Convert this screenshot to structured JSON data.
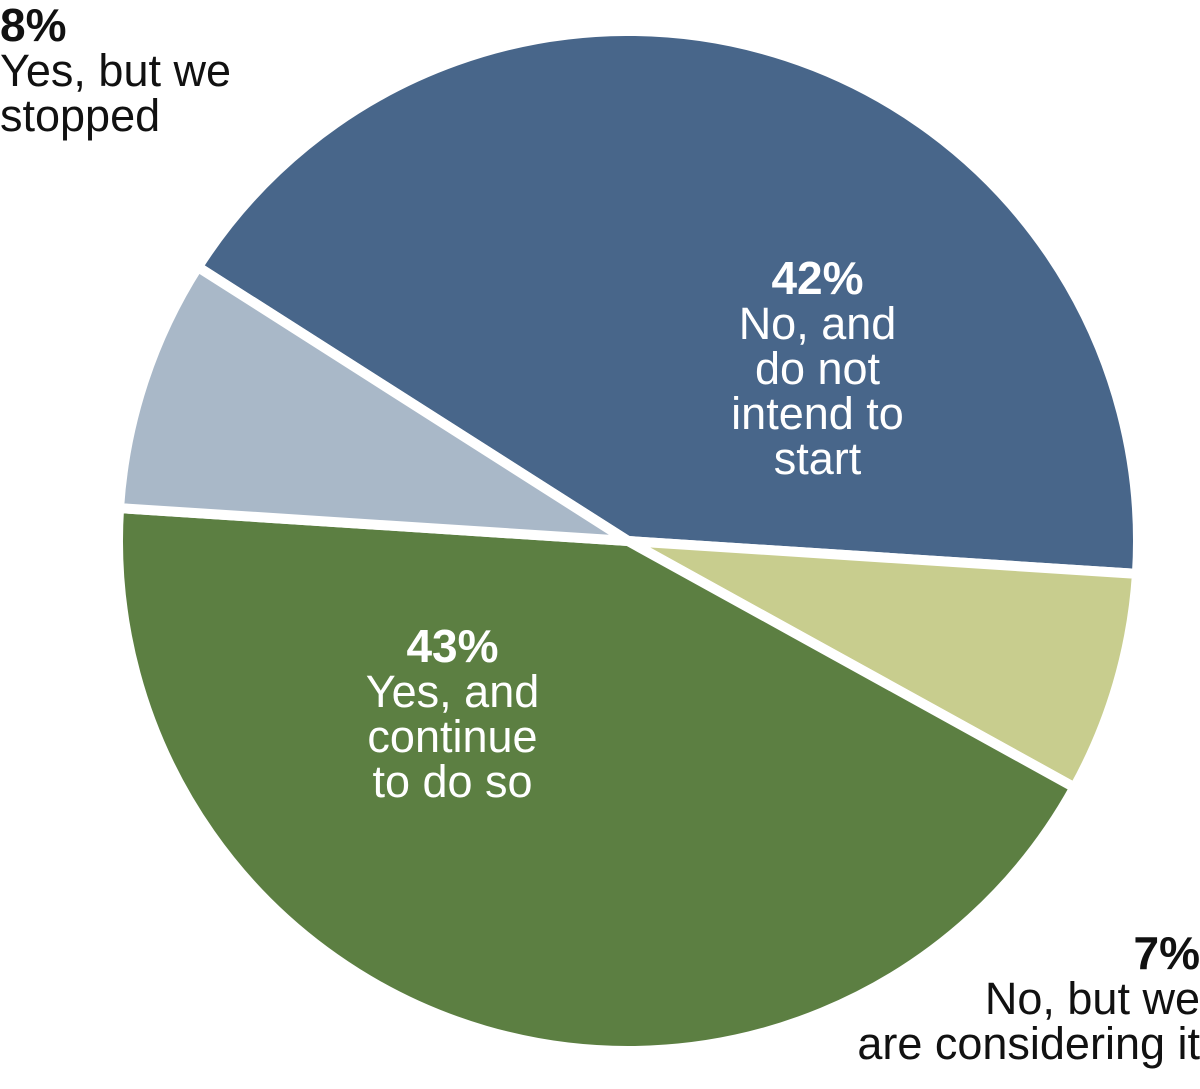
{
  "chart_data": {
    "type": "pie",
    "slices": [
      {
        "label_lines": [
          "No, and",
          "do not",
          "intend to",
          "start"
        ],
        "value": 42,
        "value_label": "42%",
        "color": "#48668a"
      },
      {
        "label_lines": [
          "No, but we",
          "are considering it"
        ],
        "value": 7,
        "value_label": "7%",
        "color": "#c8cd8e"
      },
      {
        "label_lines": [
          "Yes, and",
          "continue",
          "to do so"
        ],
        "value": 43,
        "value_label": "43%",
        "color": "#5c7f42"
      },
      {
        "label_lines": [
          "Yes, but we",
          "stopped"
        ],
        "value": 8,
        "value_label": "8%",
        "color": "#a9b8c8"
      }
    ],
    "legend": "none",
    "separator_color": "#ffffff"
  }
}
